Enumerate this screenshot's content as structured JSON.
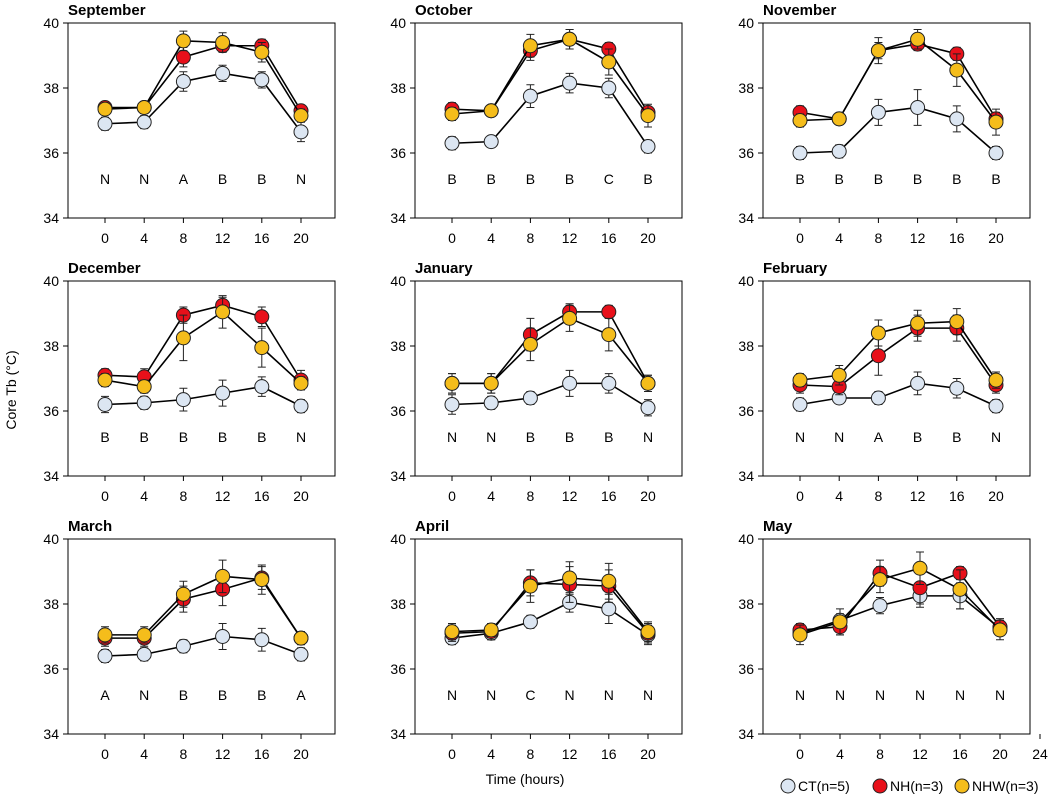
{
  "chart_data": {
    "type": "line",
    "ylabel": "Core Tb (°C)",
    "xlabel": "Time (hours)",
    "x": [
      0,
      4,
      8,
      12,
      16,
      20
    ],
    "xticks": [
      "0",
      "4",
      "8",
      "12",
      "16",
      "20"
    ],
    "xticks_extended": [
      "0",
      "4",
      "8",
      "12",
      "16",
      "20",
      "24"
    ],
    "ylim": [
      34,
      40
    ],
    "yticks": [
      "34",
      "36",
      "38",
      "40"
    ],
    "colors": {
      "CT": "#dce6f2",
      "NH": "#e8101a",
      "NHW": "#f5bd1b"
    },
    "legend": [
      {
        "key": "CT",
        "label": "CT(n=5)"
      },
      {
        "key": "NH",
        "label": "NH(n=3)"
      },
      {
        "key": "NHW",
        "label": "NHW(n=3)"
      }
    ],
    "panels": [
      {
        "title": "September",
        "letters": [
          "N",
          "N",
          "A",
          "B",
          "B",
          "N"
        ],
        "series": [
          {
            "name": "CT",
            "values": [
              36.9,
              36.95,
              38.2,
              38.45,
              38.25,
              36.65
            ],
            "err": [
              0.2,
              0.2,
              0.3,
              0.25,
              0.25,
              0.3
            ]
          },
          {
            "name": "NH",
            "values": [
              37.4,
              37.4,
              38.95,
              39.3,
              39.3,
              37.3
            ],
            "err": [
              0.15,
              0.15,
              0.3,
              0.2,
              0.2,
              0.15
            ]
          },
          {
            "name": "NHW",
            "values": [
              37.35,
              37.4,
              39.45,
              39.4,
              39.1,
              37.15
            ],
            "err": [
              0.15,
              0.15,
              0.3,
              0.3,
              0.3,
              0.2
            ]
          }
        ]
      },
      {
        "title": "October",
        "letters": [
          "B",
          "B",
          "B",
          "B",
          "C",
          "B"
        ],
        "series": [
          {
            "name": "CT",
            "values": [
              36.3,
              36.35,
              37.75,
              38.15,
              38.0,
              36.2
            ],
            "err": [
              0.2,
              0.15,
              0.35,
              0.3,
              0.3,
              0.2
            ]
          },
          {
            "name": "NH",
            "values": [
              37.35,
              37.3,
              39.15,
              39.5,
              39.2,
              37.25
            ],
            "err": [
              0.2,
              0.15,
              0.3,
              0.3,
              0.2,
              0.15
            ]
          },
          {
            "name": "NHW",
            "values": [
              37.2,
              37.3,
              39.3,
              39.5,
              38.8,
              37.15
            ],
            "err": [
              0.2,
              0.15,
              0.35,
              0.3,
              0.4,
              0.35
            ]
          }
        ]
      },
      {
        "title": "November",
        "letters": [
          "B",
          "B",
          "B",
          "B",
          "B",
          "B"
        ],
        "series": [
          {
            "name": "CT",
            "values": [
              36.0,
              36.05,
              37.25,
              37.4,
              37.05,
              36.0
            ],
            "err": [
              0.2,
              0.2,
              0.4,
              0.55,
              0.4,
              0.2
            ]
          },
          {
            "name": "NH",
            "values": [
              37.25,
              37.05,
              39.15,
              39.35,
              39.05,
              37.05
            ],
            "err": [
              0.2,
              0.1,
              0.25,
              0.2,
              0.2,
              0.2
            ]
          },
          {
            "name": "NHW",
            "values": [
              37.0,
              37.05,
              39.15,
              39.5,
              38.55,
              36.95
            ],
            "err": [
              0.2,
              0.1,
              0.4,
              0.3,
              0.5,
              0.4
            ]
          }
        ]
      },
      {
        "title": "December",
        "letters": [
          "B",
          "B",
          "B",
          "B",
          "B",
          "N"
        ],
        "series": [
          {
            "name": "CT",
            "values": [
              36.2,
              36.25,
              36.35,
              36.55,
              36.75,
              36.15
            ],
            "err": [
              0.25,
              0.2,
              0.35,
              0.4,
              0.3,
              0.2
            ]
          },
          {
            "name": "NH",
            "values": [
              37.1,
              37.05,
              38.95,
              39.25,
              38.9,
              36.95
            ],
            "err": [
              0.2,
              0.25,
              0.25,
              0.25,
              0.3,
              0.3
            ]
          },
          {
            "name": "NHW",
            "values": [
              36.95,
              36.75,
              38.25,
              39.05,
              37.95,
              36.85
            ],
            "err": [
              0.2,
              0.2,
              0.7,
              0.5,
              0.6,
              0.2
            ]
          }
        ]
      },
      {
        "title": "January",
        "letters": [
          "N",
          "N",
          "B",
          "B",
          "B",
          "N"
        ],
        "series": [
          {
            "name": "CT",
            "values": [
              36.2,
              36.25,
              36.4,
              36.85,
              36.85,
              36.1
            ],
            "err": [
              0.3,
              0.2,
              0.2,
              0.4,
              0.3,
              0.25
            ]
          },
          {
            "name": "NH",
            "values": [
              36.85,
              36.85,
              38.35,
              39.05,
              39.05,
              36.85
            ],
            "err": [
              0.3,
              0.3,
              0.5,
              0.25,
              0.2,
              0.25
            ]
          },
          {
            "name": "NHW",
            "values": [
              36.85,
              36.85,
              38.05,
              38.85,
              38.35,
              36.85
            ],
            "err": [
              0.3,
              0.3,
              0.5,
              0.4,
              0.5,
              0.25
            ]
          }
        ]
      },
      {
        "title": "February",
        "letters": [
          "N",
          "N",
          "A",
          "B",
          "B",
          "N"
        ],
        "series": [
          {
            "name": "CT",
            "values": [
              36.2,
              36.4,
              36.4,
              36.85,
              36.7,
              36.15
            ],
            "err": [
              0.2,
              0.15,
              0.2,
              0.35,
              0.3,
              0.2
            ]
          },
          {
            "name": "NH",
            "values": [
              36.8,
              36.75,
              37.7,
              38.55,
              38.55,
              36.8
            ],
            "err": [
              0.25,
              0.25,
              0.6,
              0.4,
              0.4,
              0.25
            ]
          },
          {
            "name": "NHW",
            "values": [
              36.95,
              37.1,
              38.4,
              38.7,
              38.75,
              36.95
            ],
            "err": [
              0.2,
              0.3,
              0.4,
              0.4,
              0.4,
              0.25
            ]
          }
        ]
      },
      {
        "title": "March",
        "letters": [
          "A",
          "N",
          "B",
          "B",
          "B",
          "A"
        ],
        "series": [
          {
            "name": "CT",
            "values": [
              36.4,
              36.45,
              36.7,
              37.0,
              36.9,
              36.45
            ],
            "err": [
              0.2,
              0.2,
              0.2,
              0.4,
              0.35,
              0.2
            ]
          },
          {
            "name": "NH",
            "values": [
              36.95,
              36.95,
              38.15,
              38.45,
              38.8,
              36.95
            ],
            "err": [
              0.25,
              0.25,
              0.4,
              0.5,
              0.35,
              0.2
            ]
          },
          {
            "name": "NHW",
            "values": [
              37.05,
              37.05,
              38.3,
              38.85,
              38.75,
              36.95
            ],
            "err": [
              0.25,
              0.25,
              0.4,
              0.5,
              0.45,
              0.2
            ]
          }
        ]
      },
      {
        "title": "April",
        "letters": [
          "N",
          "N",
          "C",
          "N",
          "N",
          "N"
        ],
        "series": [
          {
            "name": "CT",
            "values": [
              36.95,
              37.1,
              37.45,
              38.05,
              37.85,
              37.05
            ],
            "err": [
              0.2,
              0.2,
              0.2,
              0.3,
              0.45,
              0.3
            ]
          },
          {
            "name": "NH",
            "values": [
              37.1,
              37.15,
              38.65,
              38.6,
              38.55,
              37.1
            ],
            "err": [
              0.25,
              0.25,
              0.4,
              0.55,
              0.5,
              0.3
            ]
          },
          {
            "name": "NHW",
            "values": [
              37.15,
              37.2,
              38.55,
              38.8,
              38.7,
              37.15
            ],
            "err": [
              0.25,
              0.2,
              0.5,
              0.5,
              0.55,
              0.3
            ]
          }
        ]
      },
      {
        "title": "May",
        "letters": [
          "N",
          "N",
          "N",
          "N",
          "N",
          "N"
        ],
        "extended_x": true,
        "series": [
          {
            "name": "CT",
            "values": [
              37.1,
              37.5,
              37.95,
              38.25,
              38.25,
              37.25
            ],
            "err": [
              0.2,
              0.2,
              0.25,
              0.35,
              0.4,
              0.2
            ]
          },
          {
            "name": "NH",
            "values": [
              37.2,
              37.3,
              38.95,
              38.5,
              38.95,
              37.3
            ],
            "err": [
              0.2,
              0.25,
              0.4,
              0.5,
              0.2,
              0.25
            ]
          },
          {
            "name": "NHW",
            "values": [
              37.05,
              37.45,
              38.75,
              39.1,
              38.45,
              37.2
            ],
            "err": [
              0.3,
              0.4,
              0.4,
              0.5,
              0.6,
              0.3
            ]
          }
        ]
      }
    ]
  }
}
